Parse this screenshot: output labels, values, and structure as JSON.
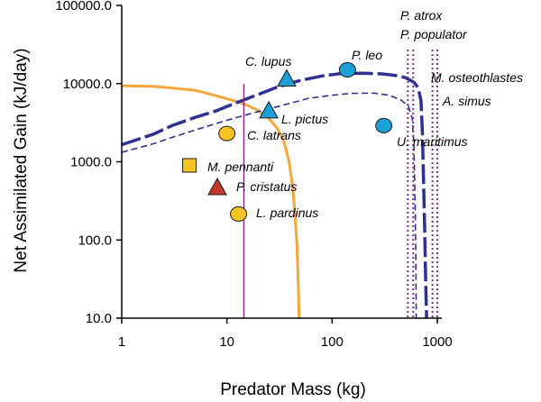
{
  "chart_data": {
    "type": "line",
    "title": "",
    "xlabel": "Predator Mass (kg)",
    "ylabel": "Net Assimilated Gain (kJ/day)",
    "x_scale": "log",
    "y_scale": "log",
    "xlim": [
      1,
      1000
    ],
    "ylim": [
      10,
      100000
    ],
    "x_ticks": [
      {
        "value": 1,
        "label": "1"
      },
      {
        "value": 10,
        "label": "10"
      },
      {
        "value": 100,
        "label": "100"
      },
      {
        "value": 1000,
        "label": "1000"
      }
    ],
    "y_ticks": [
      {
        "value": 10,
        "label": "10.0"
      },
      {
        "value": 100,
        "label": "100.0"
      },
      {
        "value": 1000,
        "label": "1000.0"
      },
      {
        "value": 10000,
        "label": "10000.0"
      },
      {
        "value": 100000,
        "label": "100000.0"
      }
    ],
    "grid": false,
    "legend": "none",
    "series": [
      {
        "key": "orange",
        "color": "#f5a53a",
        "style": "solid",
        "width": 3,
        "points": [
          [
            1,
            9400
          ],
          [
            2,
            9200
          ],
          [
            3,
            8800
          ],
          [
            5,
            8200
          ],
          [
            7,
            7300
          ],
          [
            10,
            6400
          ],
          [
            13,
            5800
          ],
          [
            16,
            5200
          ],
          [
            20,
            4500
          ],
          [
            25,
            3600
          ],
          [
            30,
            2700
          ],
          [
            35,
            1800
          ],
          [
            39,
            1000
          ],
          [
            42,
            500
          ],
          [
            44,
            250
          ],
          [
            46,
            100
          ],
          [
            47,
            50
          ],
          [
            48,
            20
          ],
          [
            48.5,
            10
          ]
        ]
      },
      {
        "key": "navy-dash",
        "color": "#2e3192",
        "style": "longdash",
        "width": 3.5,
        "points": [
          [
            1,
            1650
          ],
          [
            2,
            2250
          ],
          [
            3,
            2900
          ],
          [
            5,
            3700
          ],
          [
            8,
            4500
          ],
          [
            10,
            5100
          ],
          [
            15,
            6300
          ],
          [
            20,
            7300
          ],
          [
            30,
            9000
          ],
          [
            50,
            11000
          ],
          [
            80,
            12500
          ],
          [
            120,
            13400
          ],
          [
            200,
            13600
          ],
          [
            300,
            13300
          ],
          [
            400,
            12700
          ],
          [
            500,
            11900
          ],
          [
            600,
            10400
          ],
          [
            660,
            8800
          ],
          [
            700,
            6000
          ],
          [
            720,
            2500
          ],
          [
            740,
            600
          ],
          [
            760,
            120
          ],
          [
            775,
            30
          ],
          [
            790,
            10
          ]
        ]
      },
      {
        "key": "navy-short",
        "color": "#2e3192",
        "style": "shortdash",
        "width": 1.6,
        "points": [
          [
            1,
            1320
          ],
          [
            2,
            1700
          ],
          [
            3,
            2050
          ],
          [
            5,
            2550
          ],
          [
            8,
            3100
          ],
          [
            10,
            3400
          ],
          [
            20,
            4400
          ],
          [
            40,
            5600
          ],
          [
            60,
            6500
          ],
          [
            100,
            7100
          ],
          [
            150,
            7500
          ],
          [
            250,
            7550
          ],
          [
            350,
            7100
          ],
          [
            450,
            6200
          ],
          [
            530,
            5200
          ],
          [
            580,
            3500
          ],
          [
            600,
            1600
          ],
          [
            615,
            300
          ],
          [
            625,
            60
          ],
          [
            630,
            10
          ]
        ]
      }
    ],
    "vertical_lines": [
      {
        "key": "v-solid",
        "x": 14.5,
        "style": "solid",
        "color": "#8b2a8b"
      },
      {
        "key": "v-dot-1",
        "x": 525,
        "style": "dotted",
        "color": "#8b2a8b"
      },
      {
        "key": "v-dot-2",
        "x": 590,
        "style": "dotted",
        "color": "#8b2a8b"
      },
      {
        "key": "v-dot-3",
        "x": 900,
        "style": "dotted",
        "color": "#8b2a8b"
      },
      {
        "key": "v-dot-4",
        "x": 1000,
        "style": "dotted",
        "color": "#8b2a8b"
      }
    ],
    "points": [
      {
        "key": "c-lupus",
        "x": 37,
        "y": 11500,
        "shape": "triangle",
        "color": "#1ba0d8",
        "label": "C. lupus"
      },
      {
        "key": "p-leo",
        "x": 140,
        "y": 15000,
        "shape": "circle",
        "color": "#1ba0d8",
        "label": "P. leo"
      },
      {
        "key": "l-pictus",
        "x": 25,
        "y": 4500,
        "shape": "triangle",
        "color": "#1ba0d8",
        "label": "L. pictus"
      },
      {
        "key": "u-maritimus",
        "x": 310,
        "y": 2900,
        "shape": "circle",
        "color": "#1ba0d8",
        "label": "U. maritimus"
      },
      {
        "key": "c-latrans",
        "x": 10,
        "y": 2300,
        "shape": "circle",
        "color": "#f7c325",
        "label": "C. latrans"
      },
      {
        "key": "m-pennanti",
        "x": 4.4,
        "y": 900,
        "shape": "square",
        "color": "#f7c325",
        "label": "M. pennanti"
      },
      {
        "key": "p-cristatus",
        "x": 8.1,
        "y": 470,
        "shape": "triangle",
        "color": "#c0392b",
        "label": "P. cristatus"
      },
      {
        "key": "l-pardinus",
        "x": 12.9,
        "y": 215,
        "shape": "circle",
        "color": "#f7c325",
        "label": "L. pardinus"
      }
    ],
    "annotations": [
      {
        "key": "p-atrox",
        "text": "P. atrox"
      },
      {
        "key": "p-populator",
        "text": "P. populator"
      },
      {
        "key": "m-osteothlastes",
        "text": "M. osteothlastes"
      },
      {
        "key": "a-simus",
        "text": "A. simus"
      }
    ]
  }
}
